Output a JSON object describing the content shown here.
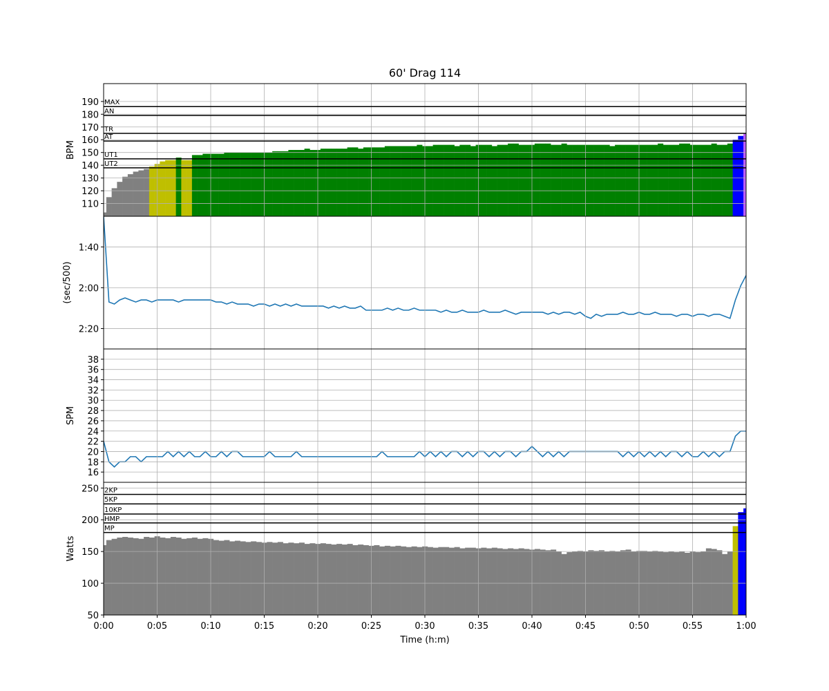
{
  "chart_data": {
    "type": "stacked-panels",
    "title": "60' Drag 114",
    "xlabel": "Time (h:m)",
    "grid": true,
    "xlim": [
      0,
      60
    ],
    "xticks": [
      {
        "value": 0,
        "label": "0:00"
      },
      {
        "value": 5,
        "label": "0:05"
      },
      {
        "value": 10,
        "label": "0:10"
      },
      {
        "value": 15,
        "label": "0:15"
      },
      {
        "value": 20,
        "label": "0:20"
      },
      {
        "value": 25,
        "label": "0:25"
      },
      {
        "value": 30,
        "label": "0:30"
      },
      {
        "value": 35,
        "label": "0:35"
      },
      {
        "value": 40,
        "label": "0:40"
      },
      {
        "value": 45,
        "label": "0:45"
      },
      {
        "value": 50,
        "label": "0:50"
      },
      {
        "value": 55,
        "label": "0:55"
      },
      {
        "value": 60,
        "label": "1:00"
      }
    ],
    "x": [
      0,
      0.5,
      1,
      1.5,
      2,
      2.5,
      3,
      3.5,
      4,
      4.5,
      5,
      5.5,
      6,
      6.5,
      7,
      7.5,
      8,
      8.5,
      9,
      9.5,
      10,
      10.5,
      11,
      11.5,
      12,
      12.5,
      13,
      13.5,
      14,
      14.5,
      15,
      15.5,
      16,
      16.5,
      17,
      17.5,
      18,
      18.5,
      19,
      19.5,
      20,
      20.5,
      21,
      21.5,
      22,
      22.5,
      23,
      23.5,
      24,
      24.5,
      25,
      25.5,
      26,
      26.5,
      27,
      27.5,
      28,
      28.5,
      29,
      29.5,
      30,
      30.5,
      31,
      31.5,
      32,
      32.5,
      33,
      33.5,
      34,
      34.5,
      35,
      35.5,
      36,
      36.5,
      37,
      37.5,
      38,
      38.5,
      39,
      39.5,
      40,
      40.5,
      41,
      41.5,
      42,
      42.5,
      43,
      43.5,
      44,
      44.5,
      45,
      45.5,
      46,
      46.5,
      47,
      47.5,
      48,
      48.5,
      49,
      49.5,
      50,
      50.5,
      51,
      51.5,
      52,
      52.5,
      53,
      53.5,
      54,
      54.5,
      55,
      55.5,
      56,
      56.5,
      57,
      57.5,
      58,
      58.5,
      59,
      59.5,
      60
    ],
    "panels": [
      {
        "type": "bar",
        "ylabel": "BPM",
        "ylim": [
          100,
          204
        ],
        "yticks": [
          110,
          120,
          130,
          140,
          150,
          160,
          170,
          180,
          190
        ],
        "thresholds": [
          {
            "label": "MAX",
            "value": 186
          },
          {
            "label": "AN",
            "value": 179
          },
          {
            "label": "TR",
            "value": 165
          },
          {
            "label": "AT",
            "value": 159
          },
          {
            "label": "UT1",
            "value": 145
          },
          {
            "label": "UT2",
            "value": 138
          }
        ],
        "zone_colors": [
          "#808080",
          "#bfbf00",
          "#008000",
          "#0000ff",
          "#bf5fff"
        ],
        "values": [
          103,
          115,
          122,
          127,
          131,
          133,
          135,
          136,
          137,
          139,
          141,
          143,
          144,
          144,
          146,
          144,
          144,
          148,
          148,
          149,
          149,
          149,
          149,
          150,
          150,
          150,
          150,
          150,
          150,
          150,
          150,
          150,
          151,
          151,
          151,
          152,
          152,
          152,
          153,
          152,
          152,
          153,
          153,
          153,
          153,
          153,
          154,
          154,
          153,
          154,
          154,
          154,
          154,
          155,
          155,
          155,
          155,
          155,
          155,
          156,
          155,
          155,
          156,
          156,
          156,
          156,
          155,
          156,
          156,
          155,
          156,
          156,
          156,
          155,
          156,
          156,
          157,
          157,
          156,
          156,
          156,
          157,
          157,
          157,
          156,
          156,
          157,
          156,
          156,
          156,
          156,
          156,
          156,
          156,
          156,
          155,
          156,
          156,
          156,
          156,
          156,
          156,
          156,
          156,
          157,
          156,
          156,
          156,
          157,
          157,
          156,
          156,
          156,
          156,
          157,
          156,
          156,
          157,
          160,
          163,
          165
        ]
      },
      {
        "type": "line",
        "ylabel": "(sec/500)",
        "color": "#1f77b4",
        "ylim": [
          150,
          85
        ],
        "yticks": [
          {
            "value": 100,
            "label": "1:40"
          },
          {
            "value": 120,
            "label": "2:00"
          },
          {
            "value": 140,
            "label": "2:20"
          }
        ],
        "values": [
          85,
          127,
          128,
          126,
          125,
          126,
          127,
          126,
          126,
          127,
          126,
          126,
          126,
          126,
          127,
          126,
          126,
          126,
          126,
          126,
          126,
          127,
          127,
          128,
          127,
          128,
          128,
          128,
          129,
          128,
          128,
          129,
          128,
          129,
          128,
          129,
          128,
          129,
          129,
          129,
          129,
          129,
          130,
          129,
          130,
          129,
          130,
          130,
          129,
          131,
          131,
          131,
          131,
          130,
          131,
          130,
          131,
          131,
          130,
          131,
          131,
          131,
          131,
          132,
          131,
          132,
          132,
          131,
          132,
          132,
          132,
          131,
          132,
          132,
          132,
          131,
          132,
          133,
          132,
          132,
          132,
          132,
          132,
          133,
          132,
          133,
          132,
          132,
          133,
          132,
          134,
          135,
          133,
          134,
          133,
          133,
          133,
          132,
          133,
          133,
          132,
          133,
          133,
          132,
          133,
          133,
          133,
          134,
          133,
          133,
          134,
          133,
          133,
          134,
          133,
          133,
          134,
          135,
          126,
          119,
          114
        ]
      },
      {
        "type": "line",
        "ylabel": "SPM",
        "color": "#1f77b4",
        "ylim": [
          14,
          40
        ],
        "yticks": [
          16,
          18,
          20,
          22,
          24,
          26,
          28,
          30,
          32,
          34,
          36,
          38
        ],
        "values": [
          22,
          18,
          17,
          18,
          18,
          19,
          19,
          18,
          19,
          19,
          19,
          19,
          20,
          19,
          20,
          19,
          20,
          19,
          19,
          20,
          19,
          19,
          20,
          19,
          20,
          20,
          19,
          19,
          19,
          19,
          19,
          20,
          19,
          19,
          19,
          19,
          20,
          19,
          19,
          19,
          19,
          19,
          19,
          19,
          19,
          19,
          19,
          19,
          19,
          19,
          19,
          19,
          20,
          19,
          19,
          19,
          19,
          19,
          19,
          20,
          19,
          20,
          19,
          20,
          19,
          20,
          20,
          19,
          20,
          19,
          20,
          20,
          19,
          20,
          19,
          20,
          20,
          19,
          20,
          20,
          21,
          20,
          19,
          20,
          19,
          20,
          19,
          20,
          20,
          20,
          20,
          20,
          20,
          20,
          20,
          20,
          20,
          19,
          20,
          19,
          20,
          19,
          20,
          19,
          20,
          19,
          20,
          20,
          19,
          20,
          19,
          19,
          20,
          19,
          20,
          19,
          20,
          20,
          23,
          24,
          24
        ]
      },
      {
        "type": "bar",
        "ylabel": "Watts",
        "ylim": [
          50,
          259
        ],
        "yticks": [
          50,
          100,
          150,
          200,
          250
        ],
        "thresholds": [
          {
            "label": "2KP",
            "value": 240
          },
          {
            "label": "5KP",
            "value": 225
          },
          {
            "label": "10KP",
            "value": 209
          },
          {
            "label": "HMP",
            "value": 195
          },
          {
            "label": "MP",
            "value": 180
          }
        ],
        "zone_colors": [
          "#808080",
          "#bfbf00",
          "#008000",
          "#0000ff",
          "#bf5fff"
        ],
        "values": [
          160,
          168,
          170,
          172,
          173,
          172,
          171,
          170,
          173,
          172,
          174,
          172,
          171,
          173,
          172,
          170,
          171,
          172,
          170,
          171,
          170,
          168,
          167,
          168,
          166,
          167,
          166,
          165,
          166,
          165,
          164,
          165,
          164,
          165,
          163,
          164,
          163,
          164,
          162,
          163,
          162,
          163,
          162,
          161,
          162,
          161,
          162,
          160,
          161,
          160,
          159,
          160,
          158,
          159,
          158,
          159,
          158,
          157,
          158,
          157,
          158,
          157,
          156,
          157,
          157,
          156,
          157,
          155,
          156,
          156,
          155,
          156,
          155,
          156,
          155,
          154,
          155,
          154,
          155,
          154,
          153,
          154,
          153,
          152,
          153,
          150,
          146,
          149,
          150,
          151,
          150,
          152,
          151,
          152,
          150,
          151,
          150,
          152,
          153,
          150,
          151,
          151,
          150,
          151,
          150,
          149,
          150,
          149,
          150,
          148,
          150,
          149,
          150,
          155,
          154,
          152,
          146,
          150,
          190,
          212,
          218
        ]
      }
    ]
  }
}
